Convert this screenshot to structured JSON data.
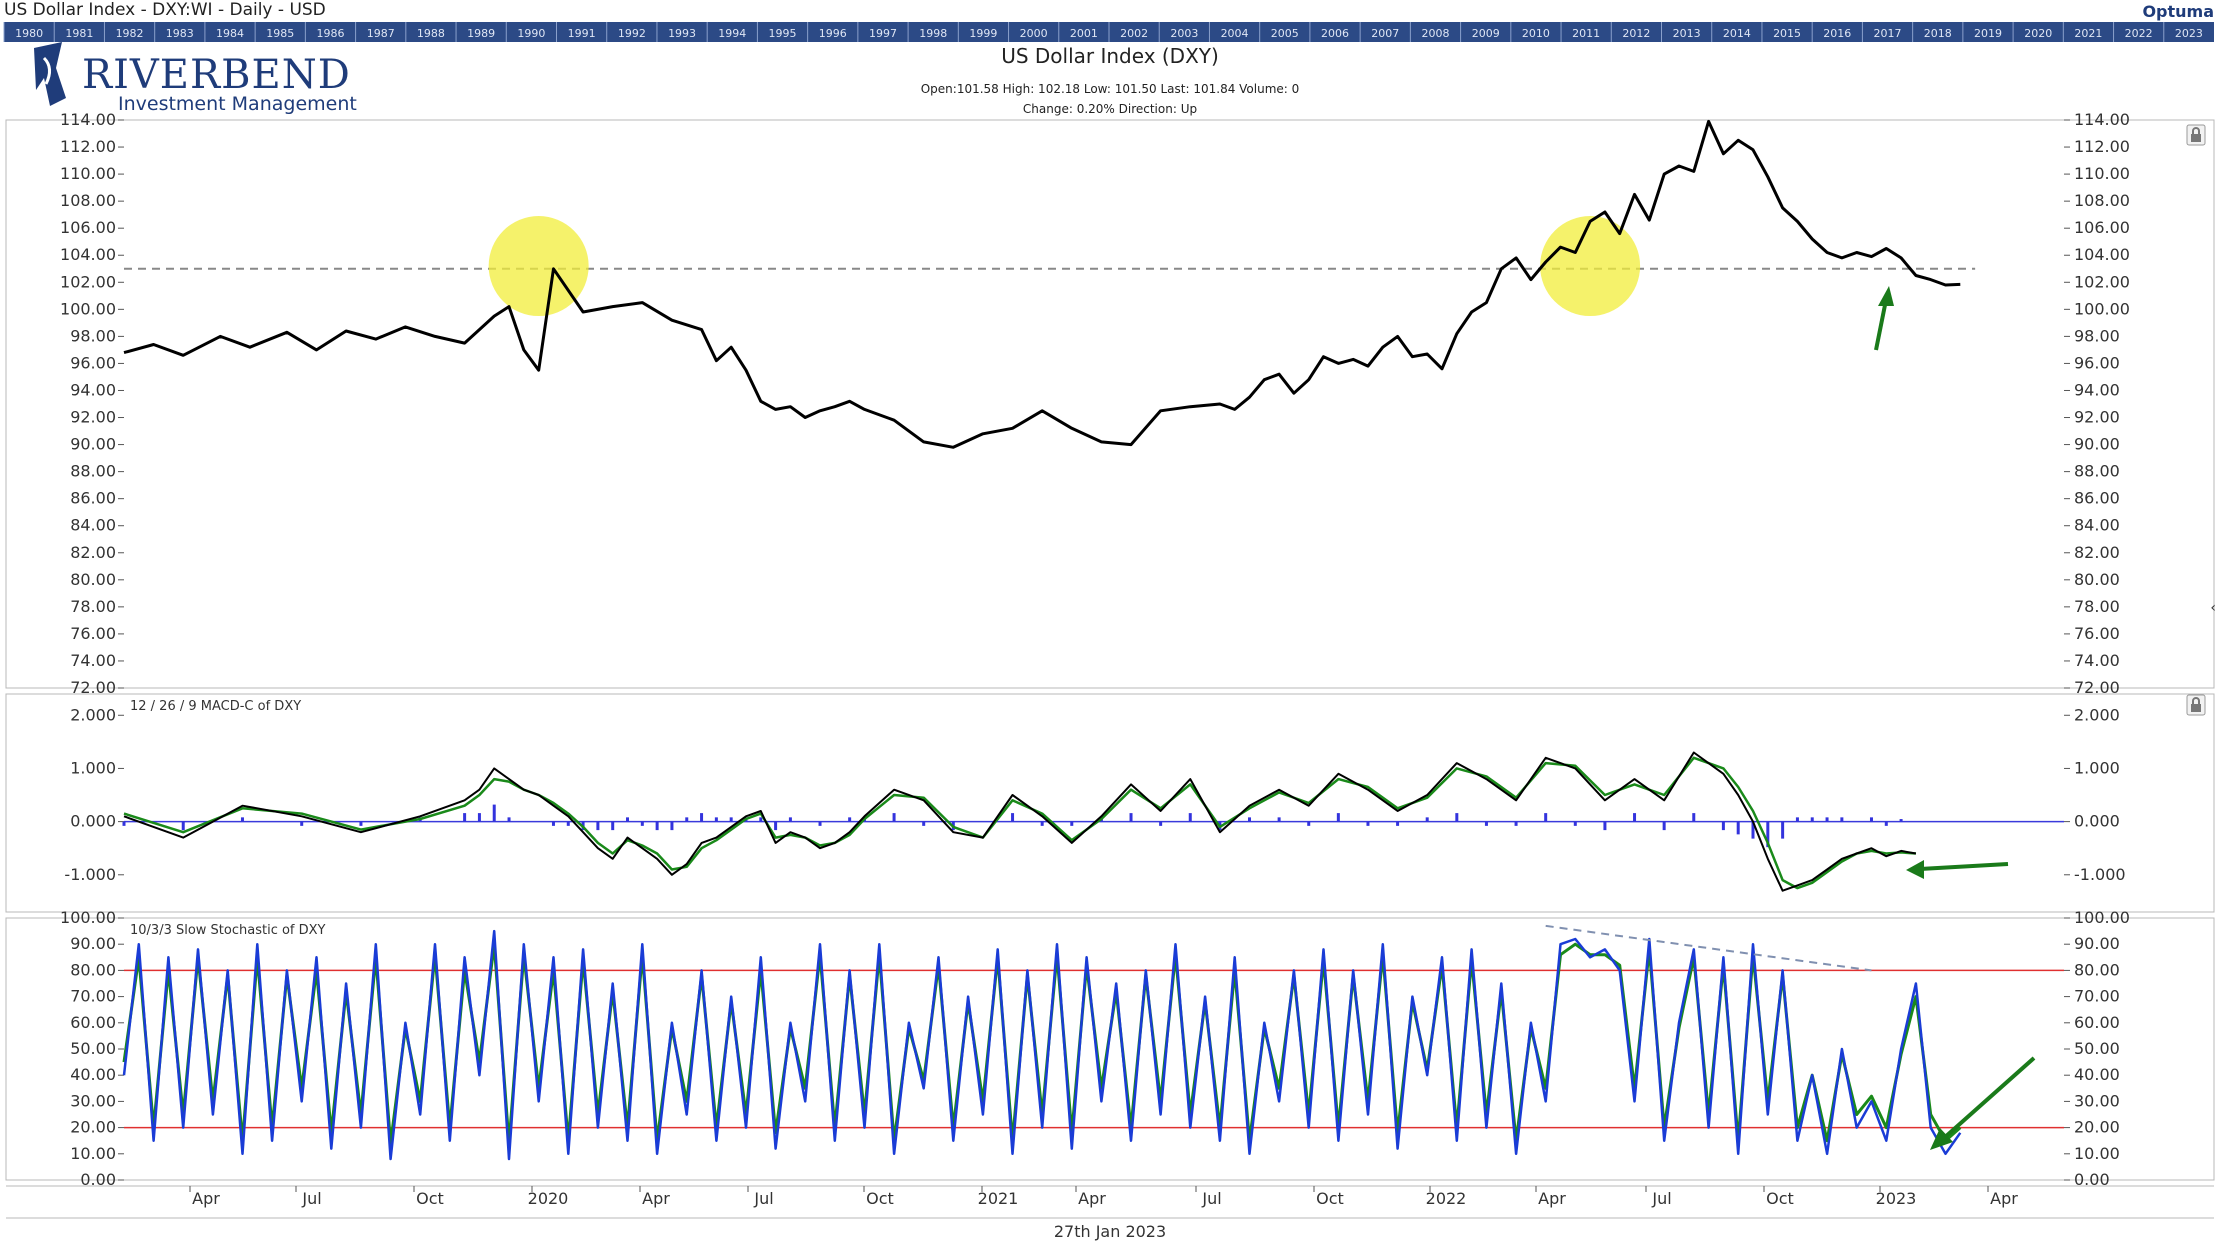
{
  "header": {
    "window_title": "US Dollar Index - DXY:WI - Daily - USD",
    "brand_name": "RIVERBEND",
    "brand_sub": "Investment Management",
    "vendor": "Optuma",
    "chart_title": "US Dollar Index (DXY)",
    "ohlc_line": "Open:101.58   High: 102.18   Low: 101.50   Last: 101.84   Volume: 0",
    "change_line": "Change: 0.20%   Direction: Up",
    "footer_date": "27th Jan 2023"
  },
  "timeline": {
    "years": [
      "1980",
      "1981",
      "1982",
      "1983",
      "1984",
      "1985",
      "1986",
      "1987",
      "1988",
      "1989",
      "1990",
      "1991",
      "1992",
      "1993",
      "1994",
      "1995",
      "1996",
      "1997",
      "1998",
      "1999",
      "2000",
      "2001",
      "2002",
      "2003",
      "2004",
      "2005",
      "2006",
      "2007",
      "2008",
      "2009",
      "2010",
      "2011",
      "2012",
      "2013",
      "2014",
      "2015",
      "2016",
      "2017",
      "2018",
      "2019",
      "2020",
      "2021",
      "2022",
      "2023"
    ]
  },
  "colors": {
    "price_line": "#000000",
    "macd_line": "#000000",
    "signal_line": "#1a8a1a",
    "histogram": "#3333dd",
    "stoch_k": "#1a3cd6",
    "stoch_d": "#1a8a1a",
    "band_line": "#e03030",
    "highlight": "#f2ee3a",
    "arrow": "#1a7a1a",
    "timeline_bg": "#2c4a86"
  },
  "chart_data": [
    {
      "type": "line",
      "name": "price",
      "title": "US Dollar Index (DXY)",
      "x_ticks": [
        "Apr",
        "Jul",
        "Oct",
        "2020",
        "Apr",
        "Jul",
        "Oct",
        "2021",
        "Apr",
        "Jul",
        "Oct",
        "2022",
        "Apr",
        "Jul",
        "Oct",
        "2023",
        "Apr"
      ],
      "y_ticks": [
        "114.00",
        "112.00",
        "110.00",
        "108.00",
        "106.00",
        "104.00",
        "102.00",
        "100.00",
        "98.00",
        "96.00",
        "94.00",
        "92.00",
        "90.00",
        "88.00",
        "86.00",
        "84.00",
        "82.00",
        "80.00",
        "78.00",
        "76.00",
        "74.00",
        "72.00"
      ],
      "ylim": [
        72,
        114
      ],
      "reference_level": 103.0,
      "x": [
        0,
        4,
        8,
        13,
        17,
        22,
        26,
        30,
        34,
        38,
        42,
        46,
        48,
        50,
        52,
        54,
        56,
        58,
        62,
        66,
        70,
        74,
        78,
        80,
        82,
        84,
        86,
        88,
        90,
        92,
        94,
        96,
        98,
        100,
        104,
        108,
        112,
        116,
        120,
        124,
        128,
        132,
        136,
        140,
        144,
        148,
        150,
        152,
        154,
        156,
        158,
        160,
        162,
        164,
        166,
        168,
        170,
        172,
        174,
        176,
        178,
        180,
        182,
        184,
        186,
        188,
        190,
        192,
        194,
        196,
        198,
        200,
        202,
        204,
        206,
        208,
        210,
        212,
        214,
        216,
        218,
        220,
        222,
        224,
        226,
        228,
        230,
        232,
        234,
        236,
        238,
        240,
        242,
        244,
        246,
        248,
        250,
        252,
        254,
        256,
        258,
        260,
        262
      ],
      "y": [
        96.8,
        97.4,
        96.6,
        98.0,
        97.2,
        98.3,
        97.0,
        98.4,
        97.8,
        98.7,
        98.0,
        97.5,
        98.5,
        99.5,
        100.2,
        97.0,
        95.5,
        103.0,
        99.8,
        100.2,
        100.5,
        99.2,
        98.5,
        96.2,
        97.2,
        95.5,
        93.2,
        92.6,
        92.8,
        92.0,
        92.5,
        92.8,
        93.2,
        92.6,
        91.8,
        90.2,
        89.8,
        90.8,
        91.2,
        92.5,
        91.2,
        90.2,
        90.0,
        92.5,
        92.8,
        93.0,
        92.6,
        93.5,
        94.8,
        95.2,
        93.8,
        94.8,
        96.5,
        96.0,
        96.3,
        95.8,
        97.2,
        98.0,
        96.5,
        96.7,
        95.6,
        98.2,
        99.8,
        100.5,
        103.0,
        103.8,
        102.2,
        103.5,
        104.6,
        104.2,
        106.5,
        107.2,
        105.6,
        108.5,
        106.6,
        110.0,
        110.6,
        110.2,
        113.9,
        111.5,
        112.5,
        111.8,
        109.8,
        107.5,
        106.5,
        105.2,
        104.2,
        103.8,
        104.2,
        103.9,
        104.5,
        103.8,
        102.5,
        102.2,
        101.8,
        101.84,
        null,
        null,
        null,
        null,
        null,
        null,
        null
      ],
      "annotations": [
        "circle at Mar 2020 peak",
        "circle at May 2022",
        "dashed horizontal line at 103",
        "green arrow Jan 2023"
      ]
    },
    {
      "type": "line",
      "name": "macd",
      "title": "12 / 26 / 9 MACD-C of DXY",
      "y_ticks": [
        "2.000",
        "1.000",
        "0.000",
        "-1.000"
      ],
      "ylim": [
        -1.7,
        2.4
      ],
      "x": [
        0,
        8,
        16,
        24,
        32,
        40,
        46,
        48,
        50,
        52,
        54,
        56,
        58,
        60,
        62,
        64,
        66,
        68,
        70,
        72,
        74,
        76,
        78,
        80,
        82,
        84,
        86,
        88,
        90,
        92,
        94,
        96,
        98,
        100,
        104,
        108,
        112,
        116,
        120,
        124,
        128,
        132,
        136,
        140,
        144,
        148,
        152,
        156,
        160,
        164,
        168,
        172,
        176,
        180,
        184,
        188,
        192,
        196,
        200,
        204,
        208,
        212,
        216,
        218,
        220,
        222,
        224,
        226,
        228,
        230,
        232,
        234,
        236,
        238,
        240,
        242,
        244,
        246,
        248,
        250,
        252,
        254
      ],
      "macd": [
        0.1,
        -0.3,
        0.3,
        0.1,
        -0.2,
        0.1,
        0.4,
        0.6,
        1.0,
        0.8,
        0.6,
        0.5,
        0.3,
        0.1,
        -0.2,
        -0.5,
        -0.7,
        -0.3,
        -0.5,
        -0.7,
        -1.0,
        -0.8,
        -0.4,
        -0.3,
        -0.1,
        0.1,
        0.2,
        -0.4,
        -0.2,
        -0.3,
        -0.5,
        -0.4,
        -0.2,
        0.1,
        0.6,
        0.4,
        -0.2,
        -0.3,
        0.5,
        0.1,
        -0.4,
        0.1,
        0.7,
        0.2,
        0.8,
        -0.2,
        0.3,
        0.6,
        0.3,
        0.9,
        0.6,
        0.2,
        0.5,
        1.1,
        0.8,
        0.4,
        1.2,
        1.0,
        0.4,
        0.8,
        0.4,
        1.3,
        0.9,
        0.5,
        0.0,
        -0.7,
        -1.3,
        -1.2,
        -1.1,
        -0.9,
        -0.7,
        -0.6,
        -0.5,
        -0.65,
        -0.55,
        -0.6,
        null,
        null,
        null,
        null,
        null,
        null
      ],
      "signal": [
        0.15,
        -0.2,
        0.25,
        0.15,
        -0.15,
        0.05,
        0.3,
        0.5,
        0.8,
        0.75,
        0.6,
        0.5,
        0.35,
        0.15,
        -0.1,
        -0.4,
        -0.6,
        -0.35,
        -0.45,
        -0.6,
        -0.9,
        -0.85,
        -0.5,
        -0.35,
        -0.15,
        0.05,
        0.15,
        -0.3,
        -0.25,
        -0.3,
        -0.45,
        -0.4,
        -0.25,
        0.05,
        0.5,
        0.45,
        -0.1,
        -0.3,
        0.4,
        0.15,
        -0.35,
        0.05,
        0.6,
        0.25,
        0.7,
        -0.1,
        0.25,
        0.55,
        0.35,
        0.8,
        0.65,
        0.25,
        0.45,
        1.0,
        0.85,
        0.45,
        1.1,
        1.05,
        0.5,
        0.7,
        0.5,
        1.2,
        1.0,
        0.65,
        0.2,
        -0.4,
        -1.1,
        -1.25,
        -1.15,
        -0.95,
        -0.75,
        -0.6,
        -0.55,
        -0.6,
        -0.58,
        -0.6,
        null,
        null,
        null,
        null,
        null,
        null
      ]
    },
    {
      "type": "line",
      "name": "stochastic",
      "title": "10/3/3 Slow Stochastic of DXY",
      "y_ticks": [
        "100.00",
        "90.00",
        "80.00",
        "70.00",
        "60.00",
        "50.00",
        "40.00",
        "30.00",
        "20.00",
        "10.00",
        "0.00"
      ],
      "ylim": [
        0,
        100
      ],
      "bands": [
        80,
        20
      ],
      "x": [
        0,
        2,
        4,
        6,
        8,
        10,
        12,
        14,
        16,
        18,
        20,
        22,
        24,
        26,
        28,
        30,
        32,
        34,
        36,
        38,
        40,
        42,
        44,
        46,
        48,
        50,
        52,
        54,
        56,
        58,
        60,
        62,
        64,
        66,
        68,
        70,
        72,
        74,
        76,
        78,
        80,
        82,
        84,
        86,
        88,
        90,
        92,
        94,
        96,
        98,
        100,
        102,
        104,
        106,
        108,
        110,
        112,
        114,
        116,
        118,
        120,
        122,
        124,
        126,
        128,
        130,
        132,
        134,
        136,
        138,
        140,
        142,
        144,
        146,
        148,
        150,
        152,
        154,
        156,
        158,
        160,
        162,
        164,
        166,
        168,
        170,
        172,
        174,
        176,
        178,
        180,
        182,
        184,
        186,
        188,
        190,
        192,
        194,
        196,
        198,
        200,
        202,
        204,
        206,
        208,
        210,
        212,
        214,
        216,
        218,
        220,
        222,
        224,
        226,
        228,
        230,
        232,
        234,
        236,
        238,
        240,
        242,
        244,
        246,
        248,
        250,
        252,
        254
      ],
      "k": [
        40,
        90,
        15,
        85,
        20,
        88,
        25,
        80,
        10,
        90,
        15,
        80,
        30,
        85,
        12,
        75,
        20,
        90,
        8,
        60,
        25,
        90,
        15,
        85,
        40,
        95,
        8,
        90,
        30,
        85,
        10,
        88,
        20,
        75,
        15,
        90,
        10,
        60,
        25,
        80,
        15,
        70,
        20,
        85,
        12,
        60,
        30,
        90,
        15,
        80,
        20,
        90,
        10,
        60,
        35,
        85,
        15,
        70,
        25,
        88,
        10,
        80,
        20,
        90,
        12,
        85,
        30,
        75,
        15,
        80,
        25,
        90,
        20,
        70,
        15,
        85,
        10,
        60,
        30,
        80,
        20,
        88,
        15,
        80,
        25,
        90,
        12,
        70,
        40,
        85,
        15,
        88,
        20,
        75,
        10,
        60,
        30,
        90,
        92,
        85,
        88,
        80,
        30,
        92,
        15,
        60,
        88,
        20,
        85,
        10,
        90,
        25,
        80,
        15,
        40,
        10,
        50,
        20,
        30,
        15,
        50,
        75,
        20,
        10,
        18,
        null,
        null,
        null
      ],
      "d": [
        45,
        85,
        20,
        80,
        25,
        85,
        30,
        78,
        15,
        85,
        20,
        78,
        35,
        80,
        18,
        72,
        25,
        85,
        14,
        58,
        30,
        86,
        20,
        80,
        45,
        90,
        14,
        86,
        35,
        80,
        15,
        84,
        25,
        72,
        20,
        86,
        15,
        58,
        30,
        78,
        20,
        68,
        25,
        80,
        18,
        58,
        35,
        86,
        20,
        78,
        25,
        86,
        15,
        58,
        38,
        82,
        20,
        68,
        30,
        85,
        15,
        78,
        25,
        86,
        18,
        82,
        35,
        72,
        20,
        78,
        30,
        86,
        25,
        68,
        20,
        80,
        15,
        58,
        35,
        78,
        25,
        84,
        20,
        78,
        30,
        86,
        18,
        68,
        42,
        82,
        20,
        84,
        25,
        72,
        15,
        58,
        35,
        86,
        90,
        86,
        86,
        82,
        35,
        88,
        20,
        58,
        85,
        25,
        82,
        15,
        86,
        30,
        78,
        20,
        40,
        15,
        48,
        25,
        32,
        20,
        48,
        70,
        25,
        15,
        20,
        null,
        null,
        null
      ]
    }
  ]
}
